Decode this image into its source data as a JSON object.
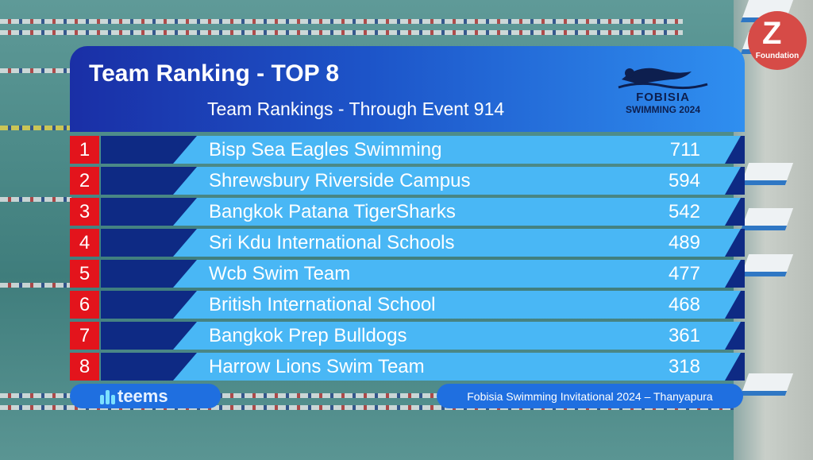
{
  "header": {
    "title": "Team Ranking - TOP 8",
    "subtitle": "Team Rankings - Through Event 914",
    "brand_line1": "FOBISIA",
    "brand_line2": "SWIMMING 2024"
  },
  "corner_logo": {
    "text": "Foundation"
  },
  "rankings": [
    {
      "rank": "1",
      "team": "Bisp Sea Eagles Swimming",
      "points": "711"
    },
    {
      "rank": "2",
      "team": "Shrewsbury Riverside Campus",
      "points": "594"
    },
    {
      "rank": "3",
      "team": "Bangkok Patana TigerSharks",
      "points": "542"
    },
    {
      "rank": "4",
      "team": "Sri Kdu International Schools",
      "points": "489"
    },
    {
      "rank": "5",
      "team": "Wcb Swim Team",
      "points": "477"
    },
    {
      "rank": "6",
      "team": "British International School",
      "points": "468"
    },
    {
      "rank": "7",
      "team": "Bangkok Prep Bulldogs",
      "points": "361"
    },
    {
      "rank": "8",
      "team": "Harrow Lions Swim Team",
      "points": "318"
    }
  ],
  "footer": {
    "sponsor": "teems",
    "event": "Fobisia Swimming Invitational 2024 – Thanyapura"
  },
  "colors": {
    "rank_bg": "#e3141c",
    "bar": "#49b7f5",
    "dark": "#0e2a84",
    "header_start": "#1a2fa6",
    "header_end": "#2f8ff0"
  }
}
